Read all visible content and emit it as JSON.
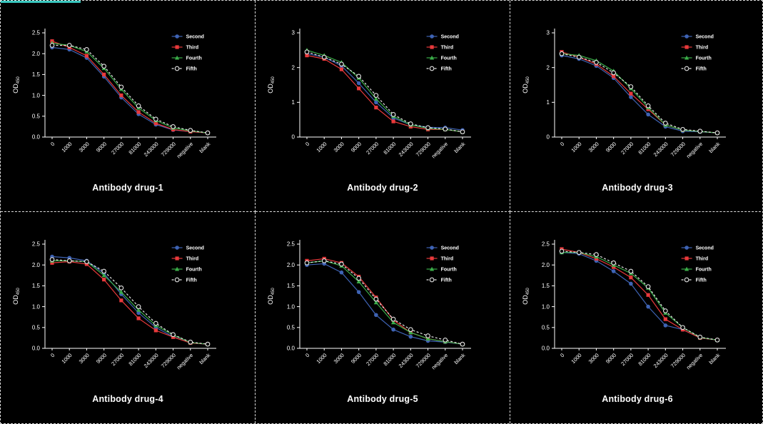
{
  "colors": {
    "background": "#000000",
    "foreground": "#ffffff",
    "accent_bar": "#39c8c0",
    "series_blue": "#3E63B4",
    "series_red": "#E8393B",
    "series_green": "#3BAE49",
    "series_open": "#E6E6E6"
  },
  "chart_data": [
    {
      "type": "line",
      "title": "Antibody drug-1",
      "ylabel": "OD450",
      "ylim": [
        0,
        2.5
      ],
      "yticks": [
        "0.0",
        "0.5",
        "1.0",
        "1.5",
        "2.0",
        "2.5"
      ],
      "categories": [
        "0",
        "1000",
        "3000",
        "9000",
        "27000",
        "81000",
        "243000",
        "729000",
        "negative",
        "blank"
      ],
      "legend_position": "top-right",
      "grid": false,
      "series": [
        {
          "name": "Second",
          "color": "#3E63B4",
          "marker": "circle",
          "dash": false,
          "values": [
            2.15,
            2.1,
            1.9,
            1.45,
            0.95,
            0.55,
            0.3,
            0.17,
            0.13,
            0.1
          ]
        },
        {
          "name": "Third",
          "color": "#E8393B",
          "marker": "square",
          "dash": false,
          "values": [
            2.3,
            2.15,
            1.95,
            1.5,
            1.0,
            0.6,
            0.33,
            0.18,
            0.13,
            0.1
          ]
        },
        {
          "name": "Fourth",
          "color": "#3BAE49",
          "marker": "triangle",
          "dash": false,
          "values": [
            2.25,
            2.2,
            2.05,
            1.65,
            1.15,
            0.7,
            0.4,
            0.22,
            0.15,
            0.1
          ]
        },
        {
          "name": "Fifth",
          "color": "#E6E6E6",
          "marker": "open-circle",
          "dash": true,
          "values": [
            2.2,
            2.2,
            2.1,
            1.7,
            1.2,
            0.75,
            0.43,
            0.25,
            0.16,
            0.1
          ]
        }
      ]
    },
    {
      "type": "line",
      "title": "Antibody drug-2",
      "ylabel": "OD450",
      "ylim": [
        0,
        3
      ],
      "yticks": [
        "0",
        "1",
        "2",
        "3"
      ],
      "categories": [
        "0",
        "1000",
        "3000",
        "9000",
        "27000",
        "81000",
        "243000",
        "729000",
        "negative",
        "blank"
      ],
      "legend_position": "top-right",
      "grid": false,
      "series": [
        {
          "name": "Second",
          "color": "#3E63B4",
          "marker": "circle",
          "dash": false,
          "values": [
            2.4,
            2.3,
            2.05,
            1.55,
            1.0,
            0.55,
            0.35,
            0.28,
            0.27,
            0.2
          ]
        },
        {
          "name": "Third",
          "color": "#E8393B",
          "marker": "square",
          "dash": false,
          "values": [
            2.35,
            2.25,
            1.95,
            1.4,
            0.85,
            0.45,
            0.3,
            0.22,
            0.22,
            0.15
          ]
        },
        {
          "name": "Fourth",
          "color": "#3BAE49",
          "marker": "triangle",
          "dash": false,
          "values": [
            2.5,
            2.35,
            2.15,
            1.7,
            1.1,
            0.6,
            0.35,
            0.25,
            0.22,
            0.15
          ]
        },
        {
          "name": "Fifth",
          "color": "#E6E6E6",
          "marker": "open-circle",
          "dash": true,
          "values": [
            2.45,
            2.3,
            2.1,
            1.75,
            1.2,
            0.65,
            0.38,
            0.27,
            0.23,
            0.15
          ]
        }
      ]
    },
    {
      "type": "line",
      "title": "Antibody drug-3",
      "ylabel": "OD450",
      "ylim": [
        0,
        3
      ],
      "yticks": [
        "0",
        "1",
        "2",
        "3"
      ],
      "categories": [
        "0",
        "1000",
        "3000",
        "9000",
        "27000",
        "81000",
        "243000",
        "729000",
        "negative",
        "blank"
      ],
      "legend_position": "top-right",
      "grid": false,
      "series": [
        {
          "name": "Second",
          "color": "#3E63B4",
          "marker": "circle",
          "dash": false,
          "values": [
            2.35,
            2.25,
            2.05,
            1.7,
            1.15,
            0.65,
            0.3,
            0.17,
            0.15,
            0.12
          ]
        },
        {
          "name": "Third",
          "color": "#E8393B",
          "marker": "square",
          "dash": false,
          "values": [
            2.45,
            2.3,
            2.1,
            1.75,
            1.25,
            0.8,
            0.35,
            0.2,
            0.16,
            0.12
          ]
        },
        {
          "name": "Fourth",
          "color": "#3BAE49",
          "marker": "triangle",
          "dash": false,
          "values": [
            2.4,
            2.35,
            2.2,
            1.9,
            1.4,
            0.85,
            0.35,
            0.2,
            0.16,
            0.12
          ]
        },
        {
          "name": "Fifth",
          "color": "#E6E6E6",
          "marker": "open-circle",
          "dash": true,
          "values": [
            2.4,
            2.3,
            2.15,
            1.85,
            1.45,
            0.9,
            0.4,
            0.22,
            0.17,
            0.12
          ]
        }
      ]
    },
    {
      "type": "line",
      "title": "Antibody drug-4",
      "ylabel": "OD450",
      "ylim": [
        0,
        2.5
      ],
      "yticks": [
        "0.0",
        "0.5",
        "1.0",
        "1.5",
        "2.0",
        "2.5"
      ],
      "categories": [
        "0",
        "1000",
        "3000",
        "9000",
        "27000",
        "81000",
        "243000",
        "729000",
        "negative",
        "blank"
      ],
      "legend_position": "top-right",
      "grid": false,
      "series": [
        {
          "name": "Second",
          "color": "#3E63B4",
          "marker": "circle",
          "dash": false,
          "values": [
            2.2,
            2.17,
            2.1,
            1.8,
            1.3,
            0.85,
            0.5,
            0.28,
            0.13,
            0.1
          ]
        },
        {
          "name": "Third",
          "color": "#E8393B",
          "marker": "square",
          "dash": false,
          "values": [
            2.05,
            2.08,
            2.02,
            1.65,
            1.15,
            0.72,
            0.43,
            0.27,
            0.13,
            0.1
          ]
        },
        {
          "name": "Fourth",
          "color": "#3BAE49",
          "marker": "triangle",
          "dash": false,
          "values": [
            2.1,
            2.1,
            2.08,
            1.75,
            1.35,
            0.92,
            0.55,
            0.32,
            0.14,
            0.1
          ]
        },
        {
          "name": "Fifth",
          "color": "#E6E6E6",
          "marker": "open-circle",
          "dash": true,
          "values": [
            2.13,
            2.1,
            2.08,
            1.85,
            1.45,
            1.0,
            0.6,
            0.33,
            0.15,
            0.1
          ]
        }
      ]
    },
    {
      "type": "line",
      "title": "Antibody drug-5",
      "ylabel": "OD450",
      "ylim": [
        0,
        2.5
      ],
      "yticks": [
        "0.0",
        "0.5",
        "1.0",
        "1.5",
        "2.0",
        "2.5"
      ],
      "categories": [
        "0",
        "1000",
        "3000",
        "9000",
        "27000",
        "81000",
        "243000",
        "729000",
        "negative",
        "blank"
      ],
      "legend_position": "top-right",
      "grid": false,
      "series": [
        {
          "name": "Second",
          "color": "#3E63B4",
          "marker": "circle",
          "dash": false,
          "values": [
            2.0,
            2.03,
            1.82,
            1.35,
            0.8,
            0.45,
            0.28,
            0.18,
            0.15,
            0.1
          ]
        },
        {
          "name": "Third",
          "color": "#E8393B",
          "marker": "square",
          "dash": false,
          "values": [
            2.1,
            2.15,
            2.05,
            1.72,
            1.22,
            0.68,
            0.38,
            0.23,
            0.16,
            0.1
          ]
        },
        {
          "name": "Fourth",
          "color": "#3BAE49",
          "marker": "triangle",
          "dash": false,
          "values": [
            2.05,
            2.1,
            1.98,
            1.6,
            1.1,
            0.62,
            0.38,
            0.23,
            0.16,
            0.1
          ]
        },
        {
          "name": "Fifth",
          "color": "#E6E6E6",
          "marker": "open-circle",
          "dash": true,
          "values": [
            2.05,
            2.1,
            2.02,
            1.68,
            1.18,
            0.7,
            0.45,
            0.3,
            0.2,
            0.1
          ]
        }
      ]
    },
    {
      "type": "line",
      "title": "Antibody drug-6",
      "ylabel": "OD450",
      "ylim": [
        0,
        2.5
      ],
      "yticks": [
        "0.0",
        "0.5",
        "1.0",
        "1.5",
        "2.0",
        "2.5"
      ],
      "categories": [
        "0",
        "1000",
        "3000",
        "9000",
        "27000",
        "81000",
        "243000",
        "729000",
        "negative",
        "blank"
      ],
      "legend_position": "top-right",
      "grid": false,
      "series": [
        {
          "name": "Second",
          "color": "#3E63B4",
          "marker": "circle",
          "dash": false,
          "values": [
            2.3,
            2.27,
            2.1,
            1.85,
            1.55,
            1.0,
            0.55,
            0.45,
            0.25,
            0.2
          ]
        },
        {
          "name": "Third",
          "color": "#E8393B",
          "marker": "square",
          "dash": false,
          "values": [
            2.38,
            2.3,
            2.15,
            1.95,
            1.7,
            1.28,
            0.7,
            0.45,
            0.25,
            0.2
          ]
        },
        {
          "name": "Fourth",
          "color": "#3BAE49",
          "marker": "triangle",
          "dash": false,
          "values": [
            2.3,
            2.3,
            2.2,
            2.0,
            1.8,
            1.45,
            0.85,
            0.5,
            0.26,
            0.2
          ]
        },
        {
          "name": "Fifth",
          "color": "#E6E6E6",
          "marker": "open-circle",
          "dash": true,
          "values": [
            2.33,
            2.3,
            2.25,
            2.05,
            1.85,
            1.48,
            0.9,
            0.5,
            0.27,
            0.2
          ]
        }
      ]
    }
  ]
}
